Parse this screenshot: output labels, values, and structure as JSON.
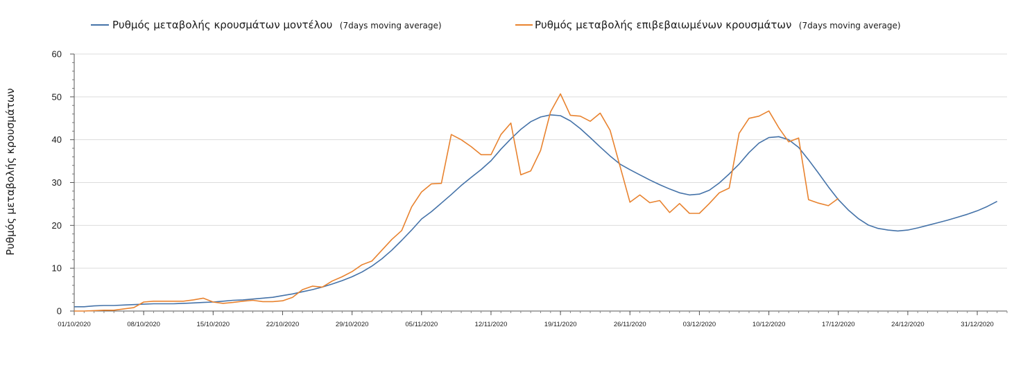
{
  "chart_data": {
    "type": "line",
    "title": "",
    "ylabel": "Ρυθμός μεταβολής κρουσμάτων",
    "xlabel": "",
    "ylim": [
      0,
      60
    ],
    "yticks": [
      0,
      10,
      20,
      30,
      40,
      50,
      60
    ],
    "x_start": "01/10/2020",
    "x_end": "03/01/2021",
    "xtick_labels": [
      "01/10/2020",
      "08/10/2020",
      "15/10/2020",
      "22/10/2020",
      "29/10/2020",
      "05/11/2020",
      "12/11/2020",
      "19/11/2020",
      "26/11/2020",
      "03/12/2020",
      "10/12/2020",
      "17/12/2020",
      "24/12/2020",
      "31/12/2020"
    ],
    "grid": "horizontal",
    "legend_position": "top",
    "series": [
      {
        "name": "Ρυθμός μεταβολής κρουσμάτων μοντέλου",
        "name_note": "(7days moving average)",
        "color": "#4472a8",
        "points": [
          [
            "01/10/2020",
            1.0
          ],
          [
            "02/10/2020",
            1.0
          ],
          [
            "03/10/2020",
            1.2
          ],
          [
            "04/10/2020",
            1.3
          ],
          [
            "05/10/2020",
            1.3
          ],
          [
            "06/10/2020",
            1.4
          ],
          [
            "07/10/2020",
            1.5
          ],
          [
            "08/10/2020",
            1.6
          ],
          [
            "09/10/2020",
            1.7
          ],
          [
            "10/10/2020",
            1.7
          ],
          [
            "11/10/2020",
            1.7
          ],
          [
            "12/10/2020",
            1.8
          ],
          [
            "13/10/2020",
            1.9
          ],
          [
            "14/10/2020",
            2.0
          ],
          [
            "15/10/2020",
            2.1
          ],
          [
            "16/10/2020",
            2.3
          ],
          [
            "17/10/2020",
            2.5
          ],
          [
            "18/10/2020",
            2.6
          ],
          [
            "19/10/2020",
            2.8
          ],
          [
            "20/10/2020",
            3.0
          ],
          [
            "21/10/2020",
            3.2
          ],
          [
            "22/10/2020",
            3.6
          ],
          [
            "23/10/2020",
            4.0
          ],
          [
            "24/10/2020",
            4.5
          ],
          [
            "25/10/2020",
            5.0
          ],
          [
            "26/10/2020",
            5.6
          ],
          [
            "27/10/2020",
            6.3
          ],
          [
            "28/10/2020",
            7.1
          ],
          [
            "29/10/2020",
            8.0
          ],
          [
            "30/10/2020",
            9.1
          ],
          [
            "31/10/2020",
            10.5
          ],
          [
            "01/11/2020",
            12.2
          ],
          [
            "02/11/2020",
            14.2
          ],
          [
            "03/11/2020",
            16.5
          ],
          [
            "04/11/2020",
            18.9
          ],
          [
            "05/11/2020",
            21.5
          ],
          [
            "06/11/2020",
            23.2
          ],
          [
            "07/11/2020",
            25.2
          ],
          [
            "08/11/2020",
            27.2
          ],
          [
            "09/11/2020",
            29.3
          ],
          [
            "10/11/2020",
            31.2
          ],
          [
            "11/11/2020",
            33.0
          ],
          [
            "12/11/2020",
            35.1
          ],
          [
            "13/11/2020",
            37.8
          ],
          [
            "14/11/2020",
            40.2
          ],
          [
            "15/11/2020",
            42.4
          ],
          [
            "16/11/2020",
            44.2
          ],
          [
            "17/11/2020",
            45.3
          ],
          [
            "18/11/2020",
            45.8
          ],
          [
            "19/11/2020",
            45.6
          ],
          [
            "20/11/2020",
            44.4
          ],
          [
            "21/11/2020",
            42.6
          ],
          [
            "22/11/2020",
            40.5
          ],
          [
            "23/11/2020",
            38.3
          ],
          [
            "24/11/2020",
            36.2
          ],
          [
            "25/11/2020",
            34.3
          ],
          [
            "26/11/2020",
            33.0
          ],
          [
            "27/11/2020",
            31.8
          ],
          [
            "28/11/2020",
            30.6
          ],
          [
            "29/11/2020",
            29.5
          ],
          [
            "30/11/2020",
            28.5
          ],
          [
            "01/12/2020",
            27.6
          ],
          [
            "02/12/2020",
            27.1
          ],
          [
            "03/12/2020",
            27.3
          ],
          [
            "04/12/2020",
            28.2
          ],
          [
            "05/12/2020",
            29.9
          ],
          [
            "06/12/2020",
            32.0
          ],
          [
            "07/12/2020",
            34.3
          ],
          [
            "08/12/2020",
            37.0
          ],
          [
            "09/12/2020",
            39.2
          ],
          [
            "10/12/2020",
            40.5
          ],
          [
            "11/12/2020",
            40.7
          ],
          [
            "12/12/2020",
            40.0
          ],
          [
            "13/12/2020",
            38.2
          ],
          [
            "14/12/2020",
            35.3
          ],
          [
            "15/12/2020",
            32.2
          ],
          [
            "16/12/2020",
            29.0
          ],
          [
            "17/12/2020",
            26.0
          ],
          [
            "18/12/2020",
            23.6
          ],
          [
            "19/12/2020",
            21.6
          ],
          [
            "20/12/2020",
            20.1
          ],
          [
            "21/12/2020",
            19.3
          ],
          [
            "22/12/2020",
            18.9
          ],
          [
            "23/12/2020",
            18.7
          ],
          [
            "24/12/2020",
            18.9
          ],
          [
            "25/12/2020",
            19.4
          ],
          [
            "26/12/2020",
            20.0
          ],
          [
            "27/12/2020",
            20.6
          ],
          [
            "28/12/2020",
            21.2
          ],
          [
            "29/12/2020",
            21.9
          ],
          [
            "30/12/2020",
            22.6
          ],
          [
            "31/12/2020",
            23.4
          ],
          [
            "01/01/2021",
            24.4
          ],
          [
            "02/01/2021",
            25.6
          ]
        ]
      },
      {
        "name": "Ρυθμός μεταβολής επιβεβαιωμένων κρουσμάτων",
        "name_note": "(7days moving average)",
        "color": "#e8822e",
        "points": [
          [
            "01/10/2020",
            0.0
          ],
          [
            "02/10/2020",
            0.0
          ],
          [
            "03/10/2020",
            0.1
          ],
          [
            "04/10/2020",
            0.2
          ],
          [
            "05/10/2020",
            0.2
          ],
          [
            "06/10/2020",
            0.5
          ],
          [
            "07/10/2020",
            0.8
          ],
          [
            "08/10/2020",
            2.1
          ],
          [
            "09/10/2020",
            2.3
          ],
          [
            "10/10/2020",
            2.3
          ],
          [
            "11/10/2020",
            2.3
          ],
          [
            "12/10/2020",
            2.3
          ],
          [
            "13/10/2020",
            2.6
          ],
          [
            "14/10/2020",
            3.0
          ],
          [
            "15/10/2020",
            2.1
          ],
          [
            "16/10/2020",
            1.8
          ],
          [
            "17/10/2020",
            2.0
          ],
          [
            "18/10/2020",
            2.3
          ],
          [
            "19/10/2020",
            2.5
          ],
          [
            "20/10/2020",
            2.2
          ],
          [
            "21/10/2020",
            2.2
          ],
          [
            "22/10/2020",
            2.4
          ],
          [
            "23/10/2020",
            3.2
          ],
          [
            "24/10/2020",
            5.0
          ],
          [
            "25/10/2020",
            5.8
          ],
          [
            "26/10/2020",
            5.6
          ],
          [
            "27/10/2020",
            7.0
          ],
          [
            "28/10/2020",
            8.0
          ],
          [
            "29/10/2020",
            9.2
          ],
          [
            "30/10/2020",
            10.8
          ],
          [
            "31/10/2020",
            11.7
          ],
          [
            "01/11/2020",
            14.2
          ],
          [
            "02/11/2020",
            16.7
          ],
          [
            "03/11/2020",
            18.8
          ],
          [
            "04/11/2020",
            24.3
          ],
          [
            "05/11/2020",
            27.8
          ],
          [
            "06/11/2020",
            29.7
          ],
          [
            "07/11/2020",
            29.8
          ],
          [
            "08/11/2020",
            41.2
          ],
          [
            "09/11/2020",
            40.0
          ],
          [
            "10/11/2020",
            38.4
          ],
          [
            "11/11/2020",
            36.5
          ],
          [
            "12/11/2020",
            36.5
          ],
          [
            "13/11/2020",
            41.2
          ],
          [
            "14/11/2020",
            43.9
          ],
          [
            "15/11/2020",
            31.8
          ],
          [
            "16/11/2020",
            32.7
          ],
          [
            "17/11/2020",
            37.5
          ],
          [
            "18/11/2020",
            46.5
          ],
          [
            "19/11/2020",
            50.7
          ],
          [
            "20/11/2020",
            45.7
          ],
          [
            "21/11/2020",
            45.5
          ],
          [
            "22/11/2020",
            44.3
          ],
          [
            "23/11/2020",
            46.2
          ],
          [
            "24/11/2020",
            42.2
          ],
          [
            "25/11/2020",
            33.8
          ],
          [
            "26/11/2020",
            25.4
          ],
          [
            "27/11/2020",
            27.1
          ],
          [
            "28/11/2020",
            25.3
          ],
          [
            "29/11/2020",
            25.8
          ],
          [
            "30/11/2020",
            23.0
          ],
          [
            "01/12/2020",
            25.1
          ],
          [
            "02/12/2020",
            22.8
          ],
          [
            "03/12/2020",
            22.8
          ],
          [
            "04/12/2020",
            25.1
          ],
          [
            "05/12/2020",
            27.6
          ],
          [
            "06/12/2020",
            28.7
          ],
          [
            "07/12/2020",
            41.5
          ],
          [
            "08/12/2020",
            45.0
          ],
          [
            "09/12/2020",
            45.5
          ],
          [
            "10/12/2020",
            46.7
          ],
          [
            "11/12/2020",
            42.8
          ],
          [
            "12/12/2020",
            39.5
          ],
          [
            "13/12/2020",
            40.4
          ],
          [
            "14/12/2020",
            26.0
          ],
          [
            "15/12/2020",
            25.2
          ],
          [
            "16/12/2020",
            24.6
          ],
          [
            "17/12/2020",
            26.3
          ]
        ]
      }
    ]
  }
}
